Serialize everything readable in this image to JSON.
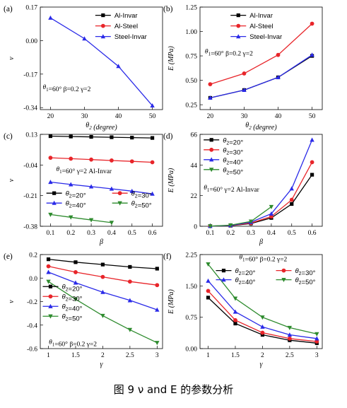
{
  "caption": "图 9 ν and E 的参数分析",
  "chart_data": [
    {
      "panel": "(a)",
      "type": "line",
      "xlabel": "θ2 (degree)",
      "ylabel": "ν",
      "xlim": [
        17,
        53
      ],
      "ylim": [
        -0.35,
        0.17
      ],
      "xticks": [
        20,
        30,
        40,
        50
      ],
      "yticks": [
        0.17,
        0.0,
        -0.17,
        -0.34
      ],
      "ytick_labels": [
        "0.17",
        "0.00",
        "-0.17",
        "-0.34"
      ],
      "annotation": "θ1=60°  β=0.2  γ=2",
      "legend_position": "top-right",
      "series": [
        {
          "name": "Al-Invar",
          "color": "#000000",
          "marker": "square",
          "x": [],
          "y": []
        },
        {
          "name": "Al-Steel",
          "color": "#e8252a",
          "marker": "circle",
          "x": [],
          "y": []
        },
        {
          "name": "Steel-Invar",
          "color": "#2a2ae8",
          "marker": "triangle",
          "x": [
            20,
            30,
            40,
            50
          ],
          "y": [
            0.115,
            0.01,
            -0.13,
            -0.33
          ]
        }
      ]
    },
    {
      "panel": "(b)",
      "type": "line",
      "xlabel": "θ2 (degree)",
      "ylabel": "E (MPa)",
      "xlim": [
        17,
        53
      ],
      "ylim": [
        0.2,
        1.25
      ],
      "xticks": [
        20,
        30,
        40,
        50
      ],
      "yticks": [
        0.25,
        0.5,
        0.75,
        1.0,
        1.25
      ],
      "ytick_labels": [
        "0.25",
        "0.50",
        "0.75",
        "1.00",
        "1.25"
      ],
      "annotation": "θ1=60°  β=0.2  γ=2",
      "legend_position": "top-left",
      "series": [
        {
          "name": "Al-Invar",
          "color": "#000000",
          "marker": "square",
          "x": [
            20,
            30,
            40,
            50
          ],
          "y": [
            0.32,
            0.4,
            0.53,
            0.75
          ]
        },
        {
          "name": "Al-Steel",
          "color": "#e8252a",
          "marker": "circle",
          "x": [
            20,
            30,
            40,
            50
          ],
          "y": [
            0.46,
            0.57,
            0.76,
            1.08
          ]
        },
        {
          "name": "Steel-Invar",
          "color": "#2a2ae8",
          "marker": "triangle",
          "x": [
            20,
            30,
            40,
            50
          ],
          "y": [
            0.32,
            0.4,
            0.53,
            0.76
          ]
        }
      ]
    },
    {
      "panel": "(c)",
      "type": "line",
      "xlabel": "β",
      "ylabel": "ν",
      "xlim": [
        0.05,
        0.65
      ],
      "ylim": [
        -0.38,
        0.13
      ],
      "xticks": [
        0.1,
        0.2,
        0.3,
        0.4,
        0.5,
        0.6
      ],
      "yticks": [
        0.13,
        -0.04,
        -0.21,
        -0.38
      ],
      "ytick_labels": [
        "0.13",
        "-0.04",
        "-0.21",
        "-0.38"
      ],
      "annotation": "θ1=60°  γ=2  Al-Invar",
      "legend_position": "bottom",
      "series": [
        {
          "name": "θ2=20°",
          "color": "#000000",
          "marker": "square",
          "x": [
            0.1,
            0.2,
            0.3,
            0.4,
            0.5,
            0.6
          ],
          "y": [
            0.12,
            0.118,
            0.116,
            0.114,
            0.112,
            0.11
          ]
        },
        {
          "name": "θ2=30°",
          "color": "#e8252a",
          "marker": "circle",
          "x": [
            0.1,
            0.2,
            0.3,
            0.4,
            0.5,
            0.6
          ],
          "y": [
            0.0,
            -0.005,
            -0.01,
            -0.015,
            -0.02,
            -0.025
          ]
        },
        {
          "name": "θ2=40°",
          "color": "#2a2ae8",
          "marker": "triangle",
          "x": [
            0.1,
            0.2,
            0.3,
            0.4,
            0.5,
            0.6
          ],
          "y": [
            -0.135,
            -0.148,
            -0.16,
            -0.172,
            -0.185,
            -0.2
          ]
        },
        {
          "name": "θ2=50°",
          "color": "#2e8b2e",
          "marker": "triangle-down",
          "x": [
            0.1,
            0.2,
            0.3,
            0.4
          ],
          "y": [
            -0.315,
            -0.33,
            -0.345,
            -0.36
          ]
        }
      ]
    },
    {
      "panel": "(d)",
      "type": "line",
      "xlabel": "β",
      "ylabel": "E (MPa)",
      "xlim": [
        0.05,
        0.65
      ],
      "ylim": [
        0,
        66
      ],
      "xticks": [
        0.1,
        0.2,
        0.3,
        0.4,
        0.5,
        0.6
      ],
      "yticks": [
        0,
        22,
        44,
        66
      ],
      "ytick_labels": [
        "0",
        "22",
        "44",
        "66"
      ],
      "annotation": "θ1=60°  γ=2  Al-Invar",
      "legend_position": "top-left",
      "series": [
        {
          "name": "θ2=20°",
          "color": "#000000",
          "marker": "square",
          "x": [
            0.1,
            0.2,
            0.3,
            0.4,
            0.5,
            0.6
          ],
          "y": [
            0.1,
            0.4,
            2,
            6,
            16,
            37
          ]
        },
        {
          "name": "θ2=30°",
          "color": "#e8252a",
          "marker": "circle",
          "x": [
            0.1,
            0.2,
            0.3,
            0.4,
            0.5,
            0.6
          ],
          "y": [
            0.1,
            0.5,
            2.3,
            7,
            19,
            46
          ]
        },
        {
          "name": "θ2=40°",
          "color": "#2a2ae8",
          "marker": "triangle",
          "x": [
            0.1,
            0.2,
            0.3,
            0.4,
            0.5,
            0.6
          ],
          "y": [
            0.1,
            0.6,
            3,
            9,
            27,
            62
          ]
        },
        {
          "name": "θ2=50°",
          "color": "#2e8b2e",
          "marker": "triangle-down",
          "x": [
            0.1,
            0.2,
            0.3,
            0.4
          ],
          "y": [
            0.1,
            0.8,
            3.5,
            14
          ]
        }
      ]
    },
    {
      "panel": "(e)",
      "type": "line",
      "xlabel": "γ",
      "ylabel": "ν",
      "xlim": [
        0.85,
        3.1
      ],
      "ylim": [
        -0.6,
        0.2
      ],
      "xticks": [
        1.0,
        1.5,
        2.0,
        2.5,
        3.0
      ],
      "yticks": [
        0.2,
        0.0,
        -0.2,
        -0.4,
        -0.6
      ],
      "ytick_labels": [
        "0.2",
        "0.0",
        "-0.2",
        "-0.4",
        "-0.6"
      ],
      "annotation": "θ1=60°  β=0.2  γ=2",
      "legend_position": "left",
      "series": [
        {
          "name": "θ2=20°",
          "color": "#000000",
          "marker": "square",
          "x": [
            1.0,
            1.5,
            2.0,
            2.5,
            3.0
          ],
          "y": [
            0.16,
            0.135,
            0.115,
            0.095,
            0.08
          ]
        },
        {
          "name": "θ2=30°",
          "color": "#e8252a",
          "marker": "circle",
          "x": [
            1.0,
            1.5,
            2.0,
            2.5,
            3.0
          ],
          "y": [
            0.1,
            0.05,
            0.01,
            -0.03,
            -0.06
          ]
        },
        {
          "name": "θ2=40°",
          "color": "#2a2ae8",
          "marker": "triangle",
          "x": [
            1.0,
            1.5,
            2.0,
            2.5,
            3.0
          ],
          "y": [
            0.05,
            -0.04,
            -0.12,
            -0.19,
            -0.27
          ]
        },
        {
          "name": "θ2=50°",
          "color": "#2e8b2e",
          "marker": "triangle-down",
          "x": [
            1.0,
            1.5,
            2.0,
            2.5,
            3.0
          ],
          "y": [
            -0.03,
            -0.18,
            -0.32,
            -0.44,
            -0.55
          ]
        }
      ]
    },
    {
      "panel": "(f)",
      "type": "line",
      "xlabel": "γ",
      "ylabel": "E (MPa)",
      "xlim": [
        0.85,
        3.1
      ],
      "ylim": [
        0,
        2.25
      ],
      "xticks": [
        1.0,
        1.5,
        2.0,
        2.5,
        3.0
      ],
      "yticks": [
        0.0,
        0.75,
        1.5,
        2.25
      ],
      "ytick_labels": [
        "0.00",
        "0.75",
        "1.50",
        "2.25"
      ],
      "annotation": "θ1=60°  β=0.2  γ=2",
      "legend_position": "top",
      "series": [
        {
          "name": "θ2=20°",
          "color": "#000000",
          "marker": "square",
          "x": [
            1.0,
            1.5,
            2.0,
            2.5,
            3.0
          ],
          "y": [
            1.22,
            0.6,
            0.33,
            0.2,
            0.13
          ]
        },
        {
          "name": "θ2=30°",
          "color": "#e8252a",
          "marker": "circle",
          "x": [
            1.0,
            1.5,
            2.0,
            2.5,
            3.0
          ],
          "y": [
            1.38,
            0.68,
            0.38,
            0.24,
            0.17
          ]
        },
        {
          "name": "θ2=40°",
          "color": "#2a2ae8",
          "marker": "triangle",
          "x": [
            1.0,
            1.5,
            2.0,
            2.5,
            3.0
          ],
          "y": [
            1.62,
            0.88,
            0.52,
            0.33,
            0.24
          ]
        },
        {
          "name": "θ2=50°",
          "color": "#2e8b2e",
          "marker": "triangle-down",
          "x": [
            1.0,
            1.5,
            2.0,
            2.5,
            3.0
          ],
          "y": [
            2.02,
            1.2,
            0.75,
            0.5,
            0.35
          ]
        }
      ]
    }
  ]
}
